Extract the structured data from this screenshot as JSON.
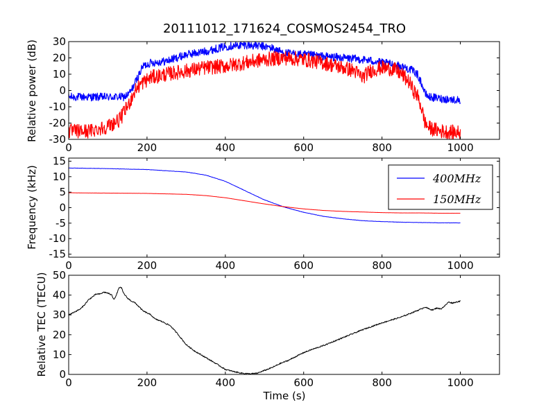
{
  "figure": {
    "title": "20111012_171624_COSMOS2454_TRO"
  },
  "chart_data": [
    {
      "type": "line",
      "title": "20111012_171624_COSMOS2454_TRO",
      "xlabel": "",
      "ylabel": "Relative power (dB)",
      "xlim": [
        0,
        1100
      ],
      "ylim": [
        -30,
        30
      ],
      "xticks": [
        0,
        200,
        400,
        600,
        800,
        1000
      ],
      "yticks": [
        -30,
        -20,
        -10,
        0,
        10,
        20,
        30
      ],
      "legend": null,
      "grid": false,
      "series": [
        {
          "color": "#0000ff",
          "noise": 2.5,
          "x": [
            0,
            50,
            100,
            140,
            150,
            160,
            170,
            180,
            190,
            210,
            250,
            300,
            350,
            400,
            450,
            500,
            520,
            550,
            600,
            650,
            700,
            750,
            780,
            800,
            830,
            860,
            880,
            890,
            900,
            910,
            920,
            950,
            1000
          ],
          "y": [
            -4,
            -4,
            -4,
            -4,
            -3,
            0,
            5,
            10,
            15,
            17,
            18,
            22,
            24,
            27,
            28,
            27,
            26,
            23,
            22,
            21,
            20,
            19,
            18,
            17,
            16,
            14,
            12,
            10,
            5,
            -2,
            -4,
            -5,
            -6
          ]
        },
        {
          "color": "#ff0000",
          "noise": 4.5,
          "x": [
            0,
            50,
            100,
            130,
            150,
            160,
            170,
            180,
            190,
            210,
            250,
            300,
            350,
            400,
            450,
            500,
            550,
            600,
            650,
            700,
            730,
            750,
            770,
            800,
            830,
            850,
            870,
            880,
            890,
            900,
            910,
            920,
            950,
            1000
          ],
          "y": [
            -25,
            -25,
            -22,
            -18,
            -10,
            -5,
            0,
            3,
            5,
            8,
            10,
            12,
            14,
            15,
            17,
            19,
            20,
            19,
            17,
            14,
            12,
            8,
            12,
            14,
            13,
            10,
            5,
            0,
            -3,
            -10,
            -20,
            -23,
            -25,
            -26
          ]
        }
      ]
    },
    {
      "type": "line",
      "title": "",
      "xlabel": "",
      "ylabel": "Frequency (kHz)",
      "xlim": [
        0,
        1100
      ],
      "ylim": [
        -16,
        16
      ],
      "xticks": [
        0,
        200,
        400,
        600,
        800,
        1000
      ],
      "yticks": [
        -15,
        -10,
        -5,
        0,
        5,
        10,
        15
      ],
      "legend": "top-right",
      "grid": false,
      "series": [
        {
          "name": "400MHz",
          "color": "#0000ff",
          "noise": 0.05,
          "x": [
            0,
            100,
            200,
            300,
            350,
            400,
            450,
            500,
            550,
            600,
            650,
            700,
            750,
            800,
            850,
            900,
            950,
            1000
          ],
          "y": [
            12.8,
            12.6,
            12.3,
            11.5,
            10.5,
            8.5,
            5.5,
            2.5,
            0.2,
            -1.5,
            -2.8,
            -3.6,
            -4.2,
            -4.5,
            -4.7,
            -4.8,
            -4.9,
            -4.9
          ]
        },
        {
          "name": "150MHz",
          "color": "#ff0000",
          "noise": 0.02,
          "x": [
            0,
            100,
            200,
            300,
            350,
            400,
            450,
            500,
            550,
            600,
            650,
            700,
            750,
            800,
            850,
            900,
            950,
            1000
          ],
          "y": [
            4.8,
            4.7,
            4.6,
            4.3,
            3.9,
            3.2,
            2.2,
            1.2,
            0.3,
            -0.4,
            -0.9,
            -1.2,
            -1.4,
            -1.6,
            -1.7,
            -1.7,
            -1.8,
            -1.8
          ]
        }
      ]
    },
    {
      "type": "line",
      "title": "",
      "xlabel": "Time (s)",
      "ylabel": "Relative TEC (TECU)",
      "xlim": [
        0,
        1100
      ],
      "ylim": [
        0,
        50
      ],
      "xticks": [
        0,
        200,
        400,
        600,
        800,
        1000
      ],
      "yticks": [
        0,
        10,
        20,
        30,
        40,
        50
      ],
      "legend": null,
      "grid": false,
      "series": [
        {
          "color": "#000000",
          "noise": 0.3,
          "x": [
            0,
            10,
            20,
            30,
            40,
            50,
            60,
            70,
            80,
            90,
            100,
            110,
            115,
            120,
            125,
            130,
            135,
            140,
            150,
            160,
            170,
            180,
            190,
            200,
            210,
            220,
            240,
            260,
            280,
            300,
            320,
            350,
            380,
            400,
            420,
            440,
            460,
            480,
            500,
            520,
            540,
            560,
            580,
            600,
            620,
            650,
            700,
            750,
            800,
            850,
            900,
            910,
            920,
            930,
            940,
            950,
            960,
            970,
            980,
            990,
            1000
          ],
          "y": [
            30,
            31,
            32,
            33,
            35,
            37.5,
            39,
            40.5,
            40.5,
            41.5,
            41,
            40,
            38,
            39,
            42,
            44,
            43.5,
            41,
            38.5,
            37,
            36,
            34,
            32,
            31,
            30,
            28,
            26.5,
            24.5,
            20,
            15,
            12,
            8.5,
            5,
            2.5,
            1.5,
            0.7,
            0.3,
            0.5,
            2,
            3.5,
            5.5,
            7,
            9,
            11,
            12.5,
            14.5,
            18.5,
            22.5,
            26,
            29,
            33,
            34,
            33,
            32.5,
            33.5,
            33,
            34.5,
            36.5,
            36,
            36.5,
            37
          ]
        }
      ]
    }
  ]
}
